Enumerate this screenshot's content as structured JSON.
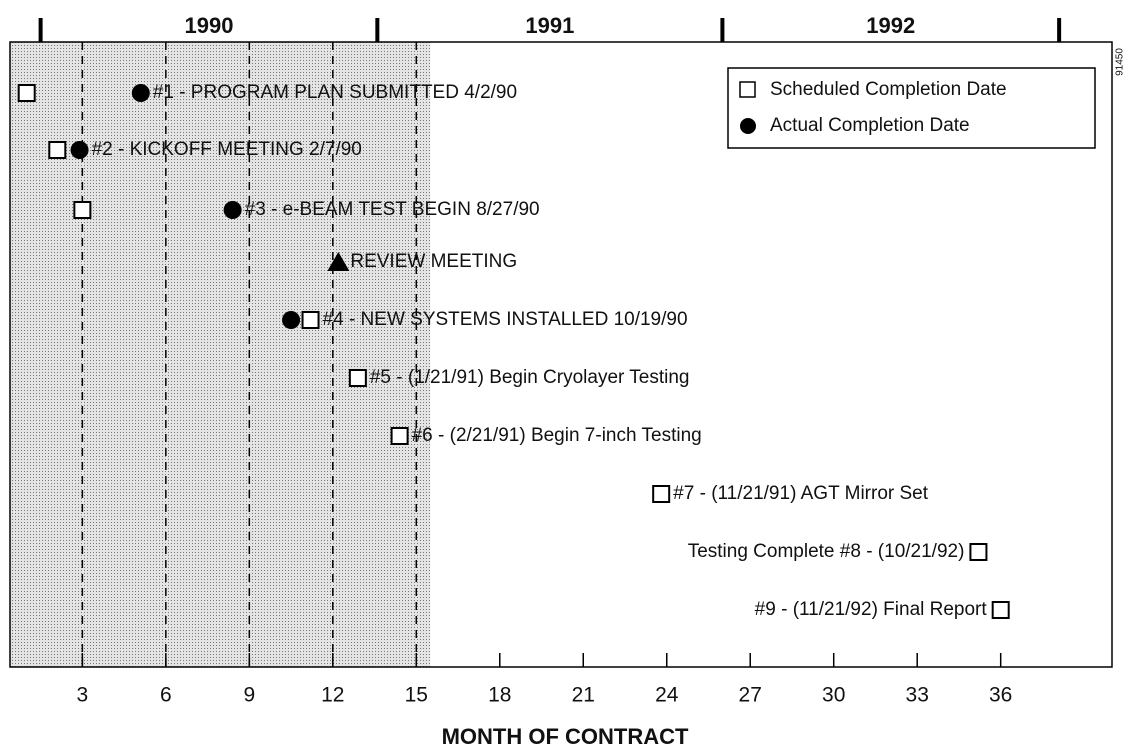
{
  "chart_data": {
    "type": "milestone",
    "xlabel": "MONTH OF CONTRACT",
    "xlim": [
      0.4,
      40
    ],
    "xticks": [
      3,
      6,
      9,
      12,
      15,
      18,
      21,
      24,
      27,
      30,
      33,
      36
    ],
    "years": [
      "1990",
      "1991",
      "1992"
    ],
    "year_boundaries": [
      1.5,
      13.6,
      26,
      38.1
    ],
    "shaded_until": 15.5,
    "dashed_lines": [
      3,
      6,
      9,
      12,
      15
    ],
    "figure_id": "91450",
    "legend": {
      "scheduled": "Scheduled Completion Date",
      "actual": "Actual Completion Date",
      "position": "upper right"
    },
    "milestones": [
      {
        "label": "#1 - PROGRAM PLAN SUBMITTED 4/2/90",
        "scheduled": 1,
        "actual": 5.1
      },
      {
        "label": "#2 - KICKOFF MEETING 2/7/90",
        "scheduled": 2.1,
        "actual": 2.9
      },
      {
        "label": "#3 - e-BEAM TEST BEGIN 8/27/90",
        "scheduled": 3,
        "actual": 8.4
      },
      {
        "label": "REVIEW MEETING",
        "meeting": 12.2
      },
      {
        "label": "#4 - NEW SYSTEMS INSTALLED 10/19/90",
        "scheduled": 11.2,
        "actual": 10.5
      },
      {
        "label": "#5 - (1/21/91) Begin Cryolayer Testing",
        "scheduled": 12.9
      },
      {
        "label": "#6 - (2/21/91) Begin 7-inch Testing",
        "scheduled": 14.4
      },
      {
        "label": "#7 - (11/21/91) AGT Mirror Set",
        "scheduled": 23.8
      },
      {
        "label": "Testing Complete #8 - (10/21/92)",
        "scheduled": 35.2,
        "label_side": "left"
      },
      {
        "label": "#9 - (11/21/92) Final Report",
        "scheduled": 36,
        "label_side": "left"
      }
    ]
  }
}
